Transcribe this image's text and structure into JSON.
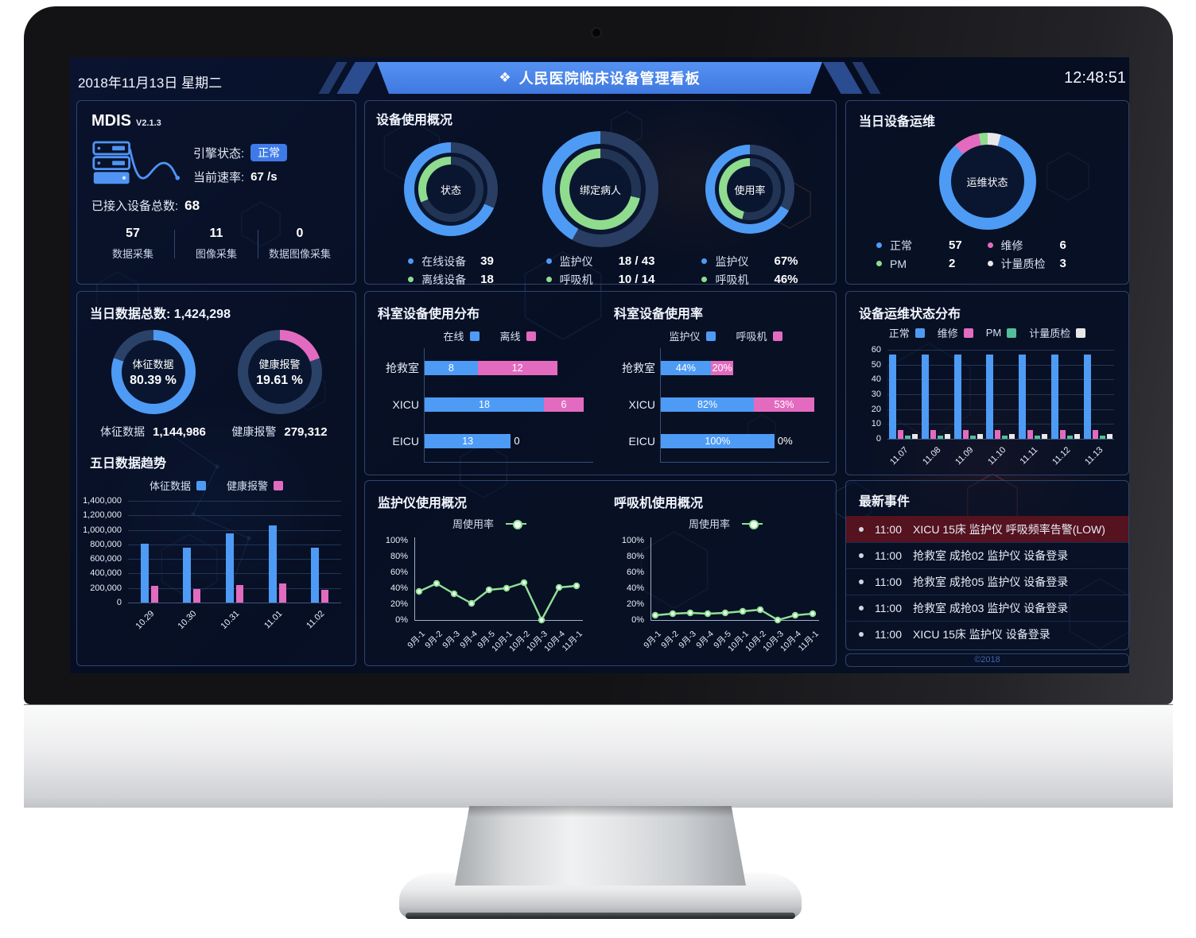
{
  "header": {
    "date": "2018年11月13日 星期二",
    "title": "人民医院临床设备管理看板",
    "time": "12:48:51"
  },
  "colors": {
    "blue": "#4e9bf5",
    "green": "#8fdc8f",
    "teal": "#52bf9a",
    "pink": "#e26bbf",
    "white_swatch": "#e8e8e8",
    "line_green": "#90e096",
    "ring_track": "#2a3e63",
    "ring_track_inner": "#223454",
    "hole": "#0a1630",
    "alert_row_bg": "#55121f",
    "badge_bg": "#3e7be8"
  },
  "mdis": {
    "title": "MDIS",
    "version": "V2.1.3",
    "engine_label": "引擎状态:",
    "engine_status": "正常",
    "rate_label": "当前速率:",
    "rate_value": "67 /s",
    "total_label": "已接入设备总数:",
    "total_value": "68",
    "stats": [
      {
        "value": "57",
        "label": "数据采集"
      },
      {
        "value": "11",
        "label": "图像采集"
      },
      {
        "value": "0",
        "label": "数据图像采集"
      }
    ]
  },
  "device_usage": {
    "title": "设备使用概况",
    "donuts": [
      {
        "center": "状态",
        "size": 118,
        "outer_pct": 68.4,
        "inner_pct": 31.6,
        "legend": [
          {
            "color": "blue",
            "label": "在线设备",
            "value": "39"
          },
          {
            "color": "green",
            "label": "离线设备",
            "value": "18"
          }
        ]
      },
      {
        "center": "绑定病人",
        "size": 146,
        "outer_pct": 41.9,
        "inner_pct": 71.4,
        "legend": [
          {
            "color": "blue",
            "label": "监护仪",
            "value": "18 / 43"
          },
          {
            "color": "green",
            "label": "呼吸机",
            "value": "10 / 14"
          }
        ]
      },
      {
        "center": "使用率",
        "size": 112,
        "outer_pct": 67,
        "inner_pct": 46,
        "legend": [
          {
            "color": "blue",
            "label": "监护仪",
            "value": "67%"
          },
          {
            "color": "green",
            "label": "呼吸机",
            "value": "46%"
          }
        ]
      }
    ]
  },
  "device_ops": {
    "title": "当日设备运维",
    "center": "运维状态",
    "size": 122,
    "segments": [
      {
        "name": "计量质检",
        "color": "white_swatch",
        "value": 3
      },
      {
        "name": "正常",
        "color": "blue",
        "value": 57
      },
      {
        "name": "维修",
        "color": "pink",
        "value": 6
      },
      {
        "name": "PM",
        "color": "green",
        "value": 2
      }
    ],
    "legend": [
      {
        "color": "blue",
        "label": "正常",
        "value": "57"
      },
      {
        "color": "pink",
        "label": "维修",
        "value": "6"
      },
      {
        "color": "green",
        "label": "PM",
        "value": "2"
      },
      {
        "color": "white_swatch",
        "label": "计量质检",
        "value": "3"
      }
    ]
  },
  "data_total": {
    "title_label": "当日数据总数:",
    "title_value": "1,424,298",
    "donuts": [
      {
        "name": "体征数据",
        "pct": 80.39,
        "pct_label": "80.39 %",
        "color": "blue",
        "stat_label": "体征数据",
        "stat_value": "1,144,986"
      },
      {
        "name": "健康报警",
        "pct": 19.61,
        "pct_label": "19.61 %",
        "color": "pink",
        "stat_label": "健康报警",
        "stat_value": "279,312"
      }
    ]
  },
  "five_day": {
    "title": "五日数据趋势",
    "legend": [
      {
        "color": "blue",
        "label": "体征数据"
      },
      {
        "color": "pink",
        "label": "健康报警"
      }
    ],
    "chart_data": {
      "type": "bar",
      "categories": [
        "10.29",
        "10.30",
        "10.31",
        "11.01",
        "11.02"
      ],
      "series": [
        {
          "name": "体征数据",
          "color": "blue",
          "values": [
            810000,
            750000,
            950000,
            1060000,
            750000
          ]
        },
        {
          "name": "健康报警",
          "color": "pink",
          "values": [
            230000,
            190000,
            240000,
            260000,
            170000
          ]
        }
      ],
      "ylim": [
        0,
        1400000
      ],
      "yticks": [
        "1,400,000",
        "1,200,000",
        "1,000,000",
        "800,000",
        "600,000",
        "400,000",
        "200,000",
        "0"
      ]
    }
  },
  "dept_dist": {
    "title": "科室设备使用分布",
    "legend": [
      {
        "color": "blue",
        "label": "在线"
      },
      {
        "color": "pink",
        "label": "离线"
      }
    ],
    "chart_data": {
      "type": "hbar-stacked",
      "rows": [
        {
          "name": "抢救室",
          "values": [
            8,
            12
          ],
          "labels": [
            "8",
            "12"
          ]
        },
        {
          "name": "XICU",
          "values": [
            18,
            6
          ],
          "labels": [
            "18",
            "6"
          ]
        },
        {
          "name": "EICU",
          "values": [
            13,
            0
          ],
          "labels": [
            "13",
            "0"
          ]
        }
      ],
      "scale_max": 24
    }
  },
  "dept_rate": {
    "title": "科室设备使用率",
    "legend": [
      {
        "color": "blue",
        "label": "监护仪"
      },
      {
        "color": "pink",
        "label": "呼吸机"
      }
    ],
    "chart_data": {
      "type": "hbar-stacked",
      "rows": [
        {
          "name": "抢救室",
          "values": [
            44,
            20
          ],
          "labels": [
            "44%",
            "20%"
          ]
        },
        {
          "name": "XICU",
          "values": [
            82,
            53
          ],
          "labels": [
            "82%",
            "53%"
          ]
        },
        {
          "name": "EICU",
          "values": [
            100,
            0
          ],
          "labels": [
            "100%",
            "0%"
          ]
        }
      ],
      "scale_max": 140
    }
  },
  "ops_dist": {
    "title": "设备运维状态分布",
    "legend": [
      {
        "color": "blue",
        "label": "正常"
      },
      {
        "color": "pink",
        "label": "维修"
      },
      {
        "color": "teal",
        "label": "PM"
      },
      {
        "color": "white_swatch",
        "label": "计量质检"
      }
    ],
    "chart_data": {
      "type": "grouped-bar",
      "categories": [
        "11.07",
        "11.08",
        "11.09",
        "11.10",
        "11.11",
        "11.12",
        "11.13"
      ],
      "series": [
        {
          "name": "正常",
          "color": "blue",
          "values": [
            57,
            57,
            57,
            57,
            57,
            57,
            57
          ]
        },
        {
          "name": "维修",
          "color": "pink",
          "values": [
            6,
            6,
            6,
            6,
            6,
            6,
            6
          ]
        },
        {
          "name": "PM",
          "color": "teal",
          "values": [
            2,
            2,
            2,
            2,
            2,
            2,
            2
          ]
        },
        {
          "name": "计量质检",
          "color": "white_swatch",
          "values": [
            3,
            3,
            3,
            3,
            3,
            3,
            3
          ]
        }
      ],
      "ylim": [
        0,
        60
      ],
      "yticks": [
        "60",
        "50",
        "40",
        "30",
        "20",
        "10",
        "0"
      ]
    }
  },
  "monitor_usage": {
    "title": "监护仪使用概况",
    "legend": "周使用率",
    "chart_data": {
      "type": "line",
      "x": [
        "9月-1",
        "9月-2",
        "9月-3",
        "9月-4",
        "9月-5",
        "10月-1",
        "10月-2",
        "10月-3",
        "10月-4",
        "11月-1"
      ],
      "values": [
        36,
        46,
        33,
        21,
        38,
        40,
        47,
        0,
        41,
        43
      ],
      "ylim": [
        0,
        100
      ],
      "yticks": [
        "100%",
        "80%",
        "60%",
        "40%",
        "20%",
        "0%"
      ]
    }
  },
  "ventilator_usage": {
    "title": "呼吸机使用概况",
    "legend": "周使用率",
    "chart_data": {
      "type": "line",
      "x": [
        "9月-1",
        "9月-2",
        "9月-3",
        "9月-4",
        "9月-5",
        "10月-1",
        "10月-2",
        "10月-3",
        "10月-4",
        "11月-1"
      ],
      "values": [
        6,
        8,
        9,
        8,
        9,
        11,
        13,
        0,
        6,
        8
      ],
      "ylim": [
        0,
        100
      ],
      "yticks": [
        "100%",
        "80%",
        "60%",
        "40%",
        "20%",
        "0%"
      ]
    }
  },
  "events": {
    "title": "最新事件",
    "items": [
      {
        "time": "11:00",
        "text": "XICU 15床 监护仪 呼吸频率告警(LOW)",
        "alert": true
      },
      {
        "time": "11:00",
        "text": "抢救室 成抢02 监护仪 设备登录",
        "alert": false
      },
      {
        "time": "11:00",
        "text": "抢救室 成抢05 监护仪 设备登录",
        "alert": false
      },
      {
        "time": "11:00",
        "text": "抢救室 成抢03 监护仪 设备登录",
        "alert": false
      },
      {
        "time": "11:00",
        "text": "XICU 15床 监护仪 设备登录",
        "alert": false
      }
    ]
  },
  "footer": {
    "copyright": "©2018"
  }
}
